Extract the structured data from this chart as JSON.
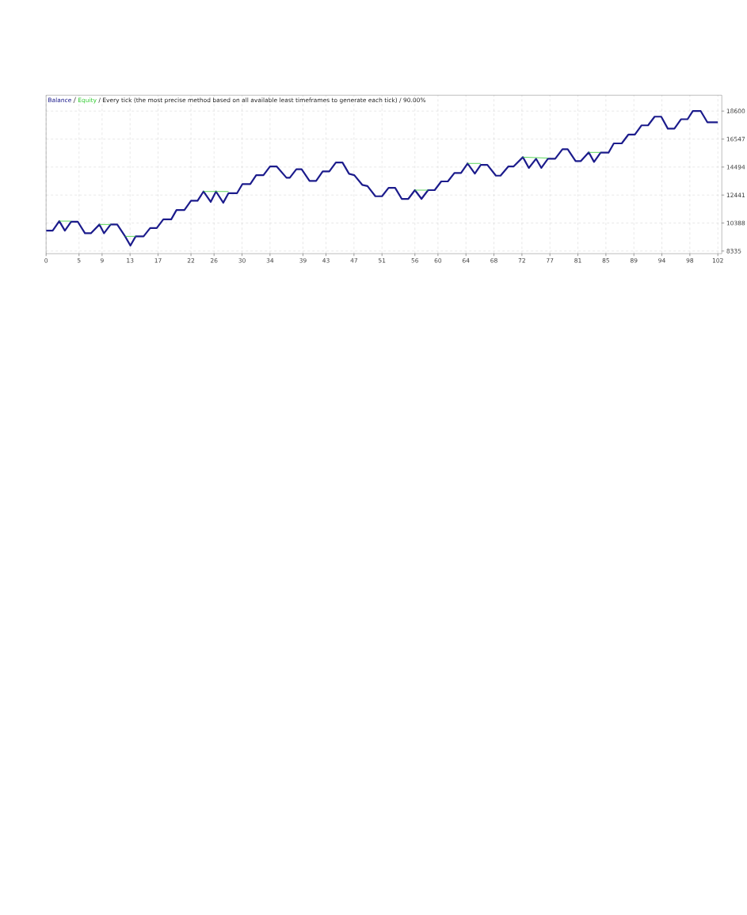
{
  "chart_data": {
    "type": "line",
    "subtitle": "/ Every tick (the most precise method based on all available least timeframes to generate each tick) / 90.00%",
    "xlim": [
      0,
      102.6
    ],
    "ylim": [
      8140,
      19760
    ],
    "xticks": [
      {
        "value": 0,
        "label": "0"
      },
      {
        "value": 5,
        "label": "5"
      },
      {
        "value": 8.5,
        "label": "9"
      },
      {
        "value": 12.75,
        "label": "13"
      },
      {
        "value": 17,
        "label": "17"
      },
      {
        "value": 22,
        "label": "22"
      },
      {
        "value": 25.5,
        "label": "26"
      },
      {
        "value": 29.75,
        "label": "30"
      },
      {
        "value": 34,
        "label": "34"
      },
      {
        "value": 39,
        "label": "39"
      },
      {
        "value": 42.5,
        "label": "43"
      },
      {
        "value": 46.75,
        "label": "47"
      },
      {
        "value": 51,
        "label": "51"
      },
      {
        "value": 56,
        "label": "56"
      },
      {
        "value": 59.5,
        "label": "60"
      },
      {
        "value": 63.75,
        "label": "64"
      },
      {
        "value": 68,
        "label": "68"
      },
      {
        "value": 72.25,
        "label": "72"
      },
      {
        "value": 76.5,
        "label": "77"
      },
      {
        "value": 80.75,
        "label": "81"
      },
      {
        "value": 85,
        "label": "85"
      },
      {
        "value": 89.25,
        "label": "89"
      },
      {
        "value": 93.5,
        "label": "94"
      },
      {
        "value": 97.75,
        "label": "98"
      },
      {
        "value": 102,
        "label": "102"
      }
    ],
    "yticks": [
      8335,
      10388,
      12441,
      14494,
      16547,
      18600
    ],
    "grid": true,
    "legend": "top left",
    "marker": "none",
    "line_style": "solid",
    "series": [
      {
        "name": "Balance",
        "color": "#1c1c8c",
        "x": [
          0,
          1,
          2,
          2.85,
          3.8,
          4.8,
          5.9,
          6.8,
          8.1,
          8.8,
          9.8,
          10.8,
          12,
          12.8,
          13.6,
          14.8,
          15.8,
          16.8,
          17.8,
          19,
          19.8,
          21,
          22,
          23,
          23.9,
          25,
          25.8,
          26.9,
          27.7,
          29,
          29.8,
          31,
          31.9,
          33,
          34,
          35,
          36.5,
          37,
          38,
          38.8,
          40,
          41,
          42,
          43,
          44,
          45,
          46,
          46.8,
          48,
          48.8,
          50,
          51,
          52,
          53,
          54,
          55,
          56,
          57,
          58,
          59,
          60,
          61,
          62,
          63,
          64,
          65.1,
          66,
          67,
          68.3,
          69,
          70.2,
          71,
          72.4,
          73.3,
          74.4,
          75.2,
          76.2,
          77.3,
          78.4,
          79.2,
          80.4,
          81.2,
          82.4,
          83.2,
          84.2,
          85.4,
          86.2,
          87.4,
          88.4,
          89.4,
          90.4,
          91.4,
          92.4,
          93.4,
          94.4,
          95.4,
          96.4,
          97.4,
          98.2,
          99.4,
          100.4,
          102
        ],
        "values": [
          9830,
          9830,
          10530,
          9830,
          10490,
          10490,
          9640,
          9640,
          10280,
          9640,
          10280,
          10280,
          9410,
          8730,
          9410,
          9410,
          10020,
          10020,
          10660,
          10660,
          11340,
          11340,
          12020,
          12020,
          12700,
          11940,
          12700,
          11880,
          12580,
          12580,
          13240,
          13240,
          13900,
          13900,
          14540,
          14540,
          13710,
          13710,
          14330,
          14330,
          13480,
          13480,
          14170,
          14170,
          14830,
          14830,
          14000,
          13900,
          13190,
          13100,
          12350,
          12350,
          12970,
          12970,
          12160,
          12160,
          12800,
          12160,
          12800,
          12800,
          13440,
          13440,
          14060,
          14060,
          14760,
          14020,
          14650,
          14650,
          13860,
          13860,
          14540,
          14540,
          15220,
          14430,
          15100,
          14430,
          15100,
          15100,
          15800,
          15800,
          14930,
          14930,
          15570,
          14870,
          15550,
          15550,
          16230,
          16230,
          16870,
          16870,
          17550,
          17550,
          18190,
          18190,
          17310,
          17310,
          18000,
          18000,
          18600,
          18600,
          17780,
          17780
        ]
      },
      {
        "name": "Equity",
        "color": "#33cc33",
        "x": [
          2,
          3.8,
          5,
          8.1,
          9.8,
          11,
          12,
          13.6,
          20,
          23.9,
          27.7,
          40,
          56,
          58,
          60,
          64,
          66,
          70,
          72.4,
          76.2,
          80,
          82.4,
          84.2
        ],
        "values": [
          10530,
          10530,
          null,
          10280,
          10280,
          null,
          9410,
          9410,
          null,
          12700,
          12700,
          null,
          12800,
          12800,
          null,
          14760,
          14760,
          null,
          15220,
          15150,
          null,
          15570,
          15570
        ]
      }
    ]
  }
}
